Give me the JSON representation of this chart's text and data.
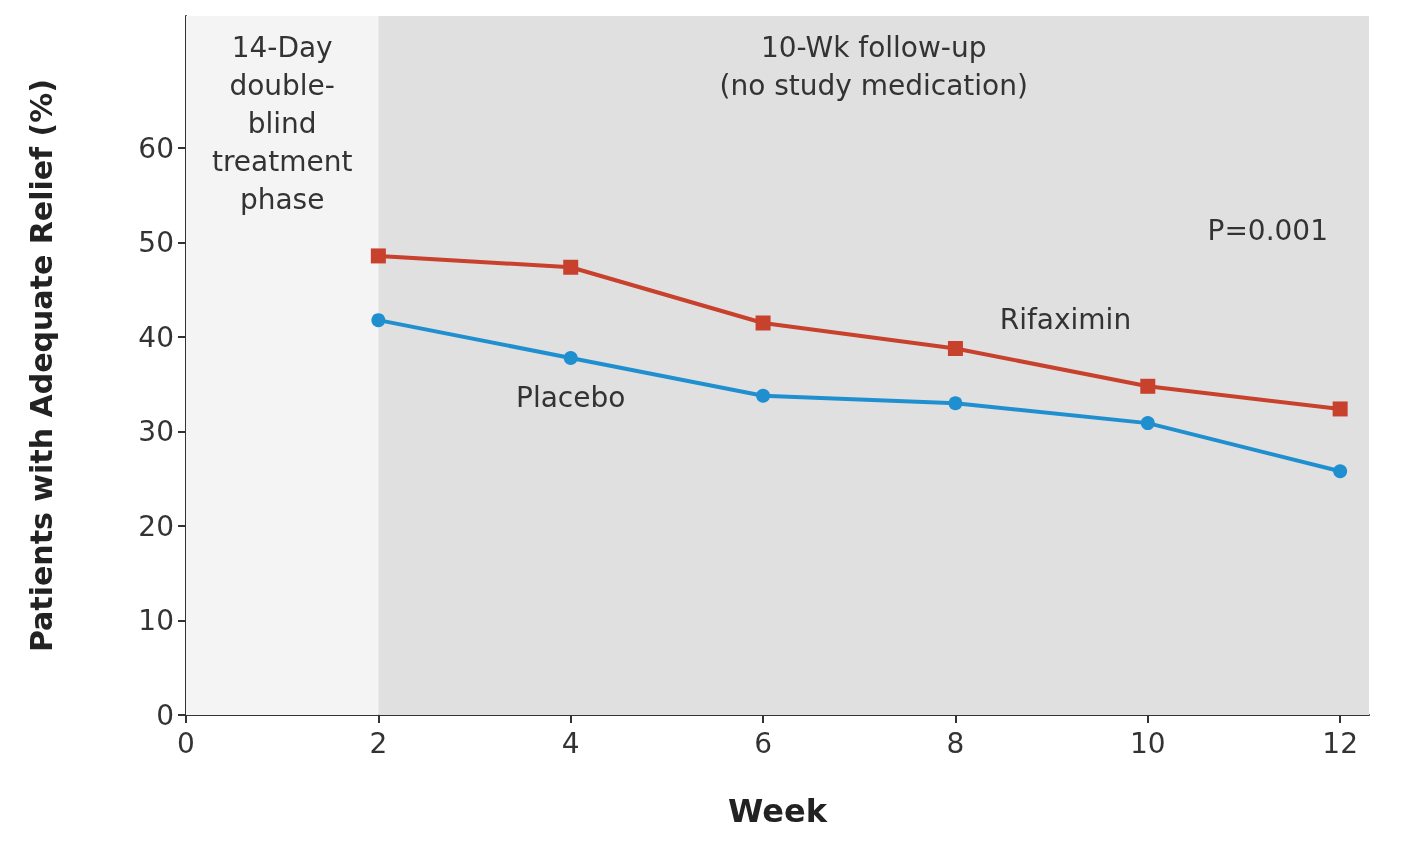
{
  "chart_data": {
    "type": "line",
    "xlabel": "Week",
    "ylabel": "Patients with Adequate Relief (%)",
    "x": [
      2,
      4,
      6,
      8,
      10,
      12
    ],
    "series": [
      {
        "name": "Rifaximin",
        "color": "#c8412c",
        "marker": "square",
        "values": [
          48.6,
          47.4,
          41.5,
          38.8,
          34.8,
          32.4
        ]
      },
      {
        "name": "Placebo",
        "color": "#1f8fd0",
        "marker": "circle",
        "values": [
          41.8,
          37.8,
          33.8,
          33.0,
          30.9,
          25.8
        ]
      }
    ],
    "xlim": [
      0,
      12.3
    ],
    "xticks": [
      0,
      2,
      4,
      6,
      8,
      10,
      12
    ],
    "ylim": [
      0,
      74
    ],
    "yticks": [
      0,
      10,
      20,
      30,
      40,
      50,
      60
    ],
    "bands": [
      {
        "axis": "x",
        "from": 0,
        "to": 2,
        "label": "14-Day\ndouble-\nblind\ntreatment\nphase",
        "color": "#f4f4f4"
      },
      {
        "axis": "x",
        "from": 2,
        "to": 12.3,
        "label": "10-Wk follow-up\n(no study medication)",
        "color": "#e0e0e0"
      }
    ],
    "annotations": [
      "P=0.001"
    ],
    "grid": false,
    "legend": false,
    "line_style": "solid"
  }
}
